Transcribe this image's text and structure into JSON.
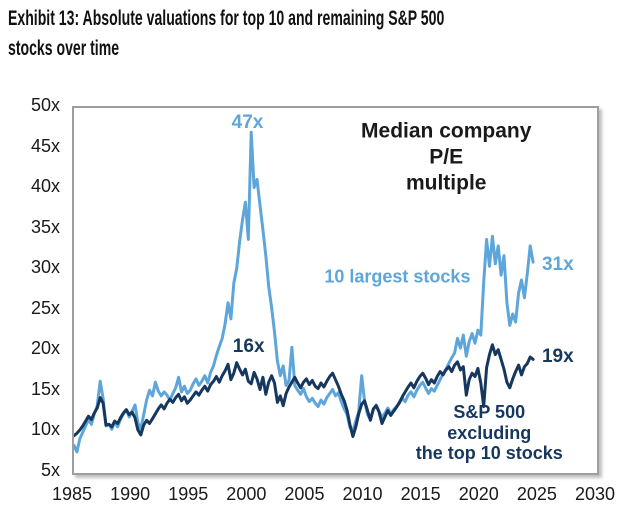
{
  "title": "Exhibit 13: Absolute valuations for top 10 and remaining S&P 500\nstocks over time",
  "colors": {
    "top10_line": "#5EA6DA",
    "ex_top10_line": "#16375E",
    "axis_border": "#9E9E9E",
    "text": "#1A1A1A"
  },
  "chart_data": {
    "type": "line",
    "title": "Median company P/E\nmultiple",
    "title_pos": {
      "x": 2017.2,
      "y": 43.6
    },
    "grid": false,
    "legend_position": "inline-annotations",
    "x_axis": {
      "min": 1985,
      "max": 2030,
      "ticks": [
        1985,
        1990,
        1995,
        2000,
        2005,
        2010,
        2015,
        2020,
        2025,
        2030
      ]
    },
    "y_axis": {
      "min": 5,
      "max": 50,
      "suffix": "x",
      "ticks": [
        50,
        45,
        40,
        35,
        30,
        25,
        20,
        15,
        10,
        5
      ]
    },
    "x_start": 1985,
    "x_step": 0.25,
    "series": [
      {
        "name": "10 largest stocks",
        "color": "#5EA6DA",
        "label_pos": {
          "x": 2013.0,
          "y": 28.9
        },
        "callouts": [
          {
            "text": "47x",
            "x": 2000.1,
            "y": 47.9
          },
          {
            "text": "31x",
            "x": 2026.8,
            "y": 30.4
          }
        ],
        "values": [
          8.4,
          7.6,
          9.2,
          10.0,
          10.8,
          11.6,
          11.0,
          12.3,
          13.3,
          16.3,
          14.2,
          10.8,
          11.0,
          10.4,
          11.3,
          10.7,
          11.6,
          12.3,
          12.8,
          11.9,
          12.6,
          13.4,
          11.2,
          10.4,
          12.2,
          14.0,
          15.2,
          14.5,
          16.2,
          15.1,
          14.5,
          15.0,
          14.6,
          14.0,
          14.8,
          15.5,
          16.8,
          15.0,
          15.7,
          14.8,
          15.2,
          16.0,
          16.6,
          15.8,
          16.3,
          17.0,
          16.1,
          17.4,
          18.2,
          19.5,
          20.6,
          21.6,
          23.4,
          26.0,
          24.0,
          28.4,
          30.2,
          33.5,
          36.2,
          38.4,
          33.8,
          47.0,
          40.2,
          41.2,
          38.0,
          35.0,
          31.8,
          28.0,
          25.4,
          22.4,
          18.8,
          17.0,
          18.2,
          15.8,
          16.4,
          20.5,
          15.8,
          15.2,
          14.7,
          15.4,
          14.4,
          13.8,
          14.2,
          13.6,
          13.2,
          14.0,
          13.5,
          14.3,
          14.8,
          15.3,
          14.5,
          14.9,
          13.8,
          12.9,
          12.2,
          10.6,
          10.2,
          11.4,
          12.6,
          17.0,
          13.8,
          12.2,
          11.6,
          12.8,
          13.4,
          12.6,
          11.8,
          12.4,
          13.0,
          12.3,
          12.8,
          13.2,
          13.6,
          14.2,
          13.8,
          14.6,
          15.0,
          14.4,
          15.2,
          15.8,
          16.2,
          15.5,
          14.8,
          15.4,
          15.1,
          15.8,
          16.5,
          17.2,
          17.8,
          18.5,
          19.2,
          19.8,
          21.6,
          20.4,
          22.0,
          19.4,
          21.2,
          22.2,
          21.0,
          22.6,
          22.0,
          28.5,
          33.8,
          30.5,
          34.2,
          30.8,
          33.0,
          29.4,
          31.8,
          26.0,
          23.2,
          24.6,
          23.6,
          27.2,
          28.8,
          26.6,
          29.6,
          33.0,
          31.0
        ]
      },
      {
        "name": "S&P 500 excluding\nthe top 10 stocks",
        "color": "#16375E",
        "label_pos": {
          "x": 2020.9,
          "y": 9.7
        },
        "callouts": [
          {
            "text": "16x",
            "x": 2000.2,
            "y": 20.3
          },
          {
            "text": "19x",
            "x": 2026.8,
            "y": 19.1
          }
        ],
        "values": [
          9.6,
          9.9,
          10.3,
          10.8,
          11.4,
          12.0,
          11.6,
          12.4,
          13.0,
          14.3,
          13.6,
          10.9,
          11.0,
          10.7,
          11.4,
          11.1,
          11.8,
          12.4,
          12.8,
          12.2,
          12.5,
          11.8,
          10.3,
          9.7,
          10.9,
          11.5,
          11.1,
          11.7,
          12.3,
          12.9,
          13.4,
          12.9,
          13.6,
          14.1,
          13.7,
          14.3,
          14.7,
          13.9,
          14.4,
          13.6,
          14.0,
          14.5,
          15.0,
          14.6,
          15.2,
          15.7,
          15.1,
          15.9,
          16.3,
          16.9,
          16.2,
          17.0,
          17.6,
          18.4,
          16.5,
          17.3,
          18.6,
          17.8,
          17.1,
          17.8,
          16.3,
          16.0,
          17.4,
          16.6,
          15.3,
          16.8,
          14.7,
          16.2,
          17.0,
          16.1,
          13.7,
          14.5,
          13.3,
          14.8,
          15.6,
          16.2,
          16.8,
          16.1,
          15.5,
          16.2,
          16.6,
          15.9,
          16.4,
          15.7,
          15.4,
          16.1,
          15.6,
          16.3,
          16.9,
          17.3,
          16.5,
          15.7,
          14.7,
          13.9,
          12.7,
          10.9,
          9.5,
          10.7,
          12.3,
          13.5,
          13.9,
          12.7,
          11.5,
          12.9,
          13.3,
          12.5,
          11.1,
          11.9,
          12.7,
          12.1,
          12.6,
          13.1,
          13.7,
          14.4,
          15.0,
          15.6,
          16.1,
          15.5,
          16.3,
          16.9,
          17.3,
          16.7,
          15.9,
          16.5,
          16.1,
          16.9,
          17.5,
          17.1,
          17.7,
          18.1,
          17.5,
          18.3,
          18.7,
          17.7,
          18.1,
          14.6,
          16.5,
          17.3,
          16.9,
          17.9,
          16.1,
          13.2,
          18.0,
          19.6,
          20.8,
          19.6,
          20.2,
          19.0,
          17.8,
          16.2,
          15.5,
          16.6,
          17.5,
          18.3,
          17.1,
          18.1,
          18.5,
          19.3,
          19.0
        ]
      }
    ]
  }
}
